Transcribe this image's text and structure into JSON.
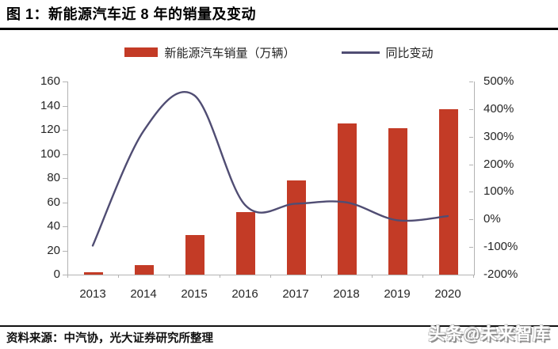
{
  "title": "图 1：新能源汽车近 8 年的销量及变动",
  "legend": {
    "bar_label": "新能源汽车销量（万辆）",
    "line_label": "同比变动"
  },
  "footer": {
    "source": "资料来源：中汽协，光大证券研究所整理",
    "watermark": "头条@未来智库"
  },
  "colors": {
    "bar": "#c33b26",
    "line": "#504d73",
    "axis": "#b3b3b3",
    "tick_text": "#262626"
  },
  "chart_data": {
    "type": "bar+line",
    "title": "新能源汽车近 8 年的销量及变动",
    "categories": [
      "2013",
      "2014",
      "2015",
      "2016",
      "2017",
      "2018",
      "2019",
      "2020"
    ],
    "series": [
      {
        "name": "新能源汽车销量（万辆）",
        "type": "bar",
        "axis": "left",
        "values": [
          2,
          8,
          33,
          52,
          78,
          125,
          121,
          137
        ]
      },
      {
        "name": "同比变动",
        "type": "line",
        "axis": "right",
        "values_pct": [
          -95,
          320,
          450,
          53,
          57,
          62,
          -3,
          12
        ]
      }
    ],
    "left_axis": {
      "min": 0,
      "max": 160,
      "ticks": [
        0,
        20,
        40,
        60,
        80,
        100,
        120,
        140,
        160
      ]
    },
    "right_axis": {
      "min": -200,
      "max": 500,
      "ticks": [
        500,
        400,
        300,
        200,
        100,
        0,
        -100,
        -200
      ],
      "tick_labels": [
        "500%",
        "400%",
        "300%",
        "200%",
        "100%",
        "0%",
        "-100%",
        "-200%"
      ]
    },
    "grid": false,
    "legend_position": "top-center",
    "smooth_line": true
  }
}
